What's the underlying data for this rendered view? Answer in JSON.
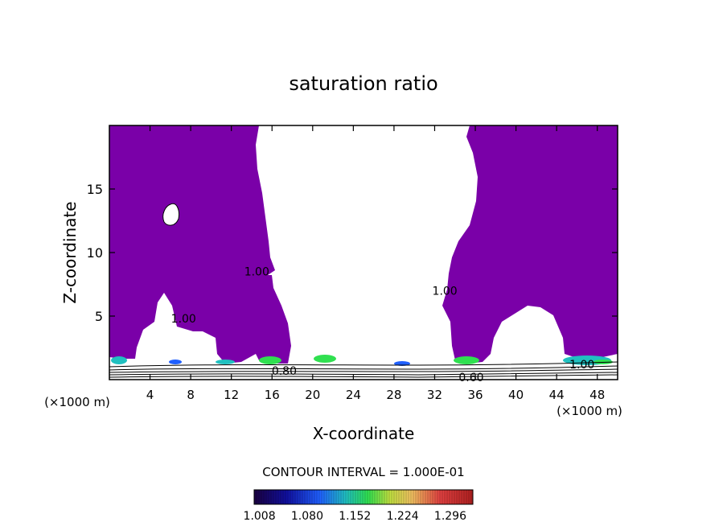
{
  "chart_data": {
    "type": "contour",
    "title": "saturation ratio",
    "xlabel": "X-coordinate",
    "ylabel": "Z-coordinate",
    "x_unit_left": "(×1000 m)",
    "x_unit_right": "(×1000 m)",
    "xlim": [
      0,
      50
    ],
    "ylim": [
      0,
      20
    ],
    "x_ticks": [
      "4",
      "8",
      "12",
      "16",
      "20",
      "24",
      "28",
      "32",
      "36",
      "40",
      "44",
      "48"
    ],
    "x_tick_values": [
      4,
      8,
      12,
      16,
      20,
      24,
      28,
      32,
      36,
      40,
      44,
      48
    ],
    "y_ticks": [
      "5",
      "10",
      "15"
    ],
    "y_tick_values": [
      5,
      10,
      15
    ],
    "contour_labels": [
      {
        "text": "1.00",
        "x": 14.5,
        "z": 8.5
      },
      {
        "text": "1.00",
        "x": 7.3,
        "z": 4.8
      },
      {
        "text": "1.00",
        "x": 33.0,
        "z": 7.0
      },
      {
        "text": "1.00",
        "x": 46.5,
        "z": 1.2
      },
      {
        "text": "0.80",
        "x": 17.2,
        "z": 0.7
      },
      {
        "text": "0.60",
        "x": 35.6,
        "z": 0.2
      }
    ],
    "contour_interval_text": "CONTOUR INTERVAL = 1.000E-01",
    "colorbar": {
      "labels": [
        "1.008",
        "1.080",
        "1.152",
        "1.224",
        "1.296"
      ],
      "values": [
        1.008,
        1.08,
        1.152,
        1.224,
        1.296
      ],
      "range": [
        1.0,
        1.33
      ]
    },
    "colors": {
      "saturated_fill": "#7a00a8",
      "plot_border": "#000000",
      "background": "#ffffff"
    },
    "supersaturated_region": {
      "color": "#7a00a8",
      "threshold": 1.0
    }
  }
}
